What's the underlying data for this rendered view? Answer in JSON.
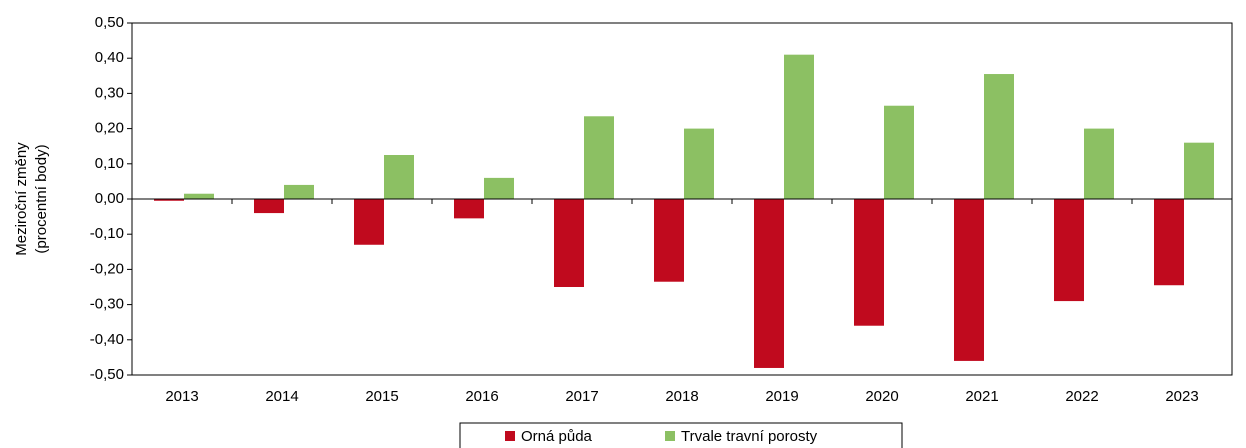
{
  "chart_data": {
    "type": "bar",
    "y_label": [
      "Meziroční změny",
      "(procentní body)"
    ],
    "categories": [
      "2013",
      "2014",
      "2015",
      "2016",
      "2017",
      "2018",
      "2019",
      "2020",
      "2021",
      "2022",
      "2023"
    ],
    "series": [
      {
        "name": "Orná půda",
        "color": "#c00a1e",
        "values": [
          -0.005,
          -0.04,
          -0.13,
          -0.055,
          -0.25,
          -0.235,
          -0.48,
          -0.36,
          -0.46,
          -0.29,
          -0.245
        ]
      },
      {
        "name": "Trvale travní porosty",
        "color": "#8cc063",
        "values": [
          0.015,
          0.04,
          0.125,
          0.06,
          0.235,
          0.2,
          0.41,
          0.265,
          0.355,
          0.2,
          0.16
        ]
      }
    ],
    "ylim": [
      -0.5,
      0.5
    ],
    "yticks": [
      {
        "value": -0.5,
        "label": "-0,50"
      },
      {
        "value": -0.4,
        "label": "-0,40"
      },
      {
        "value": -0.3,
        "label": "-0,30"
      },
      {
        "value": -0.2,
        "label": "-0,20"
      },
      {
        "value": -0.1,
        "label": "-0,10"
      },
      {
        "value": 0,
        "label": "0,00"
      },
      {
        "value": 0.1,
        "label": "0,10"
      },
      {
        "value": 0.2,
        "label": "0,20"
      },
      {
        "value": 0.3,
        "label": "0,30"
      },
      {
        "value": 0.4,
        "label": "0,40"
      },
      {
        "value": 0.5,
        "label": "0,50"
      }
    ],
    "legend": "bottom"
  }
}
